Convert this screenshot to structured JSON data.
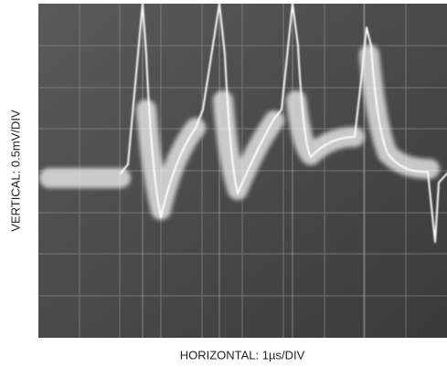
{
  "labels": {
    "vertical": "VERTICAL: 0.5mV/DIV",
    "horizontal": "HORIZONTAL: 1µs/DIV"
  }
}
